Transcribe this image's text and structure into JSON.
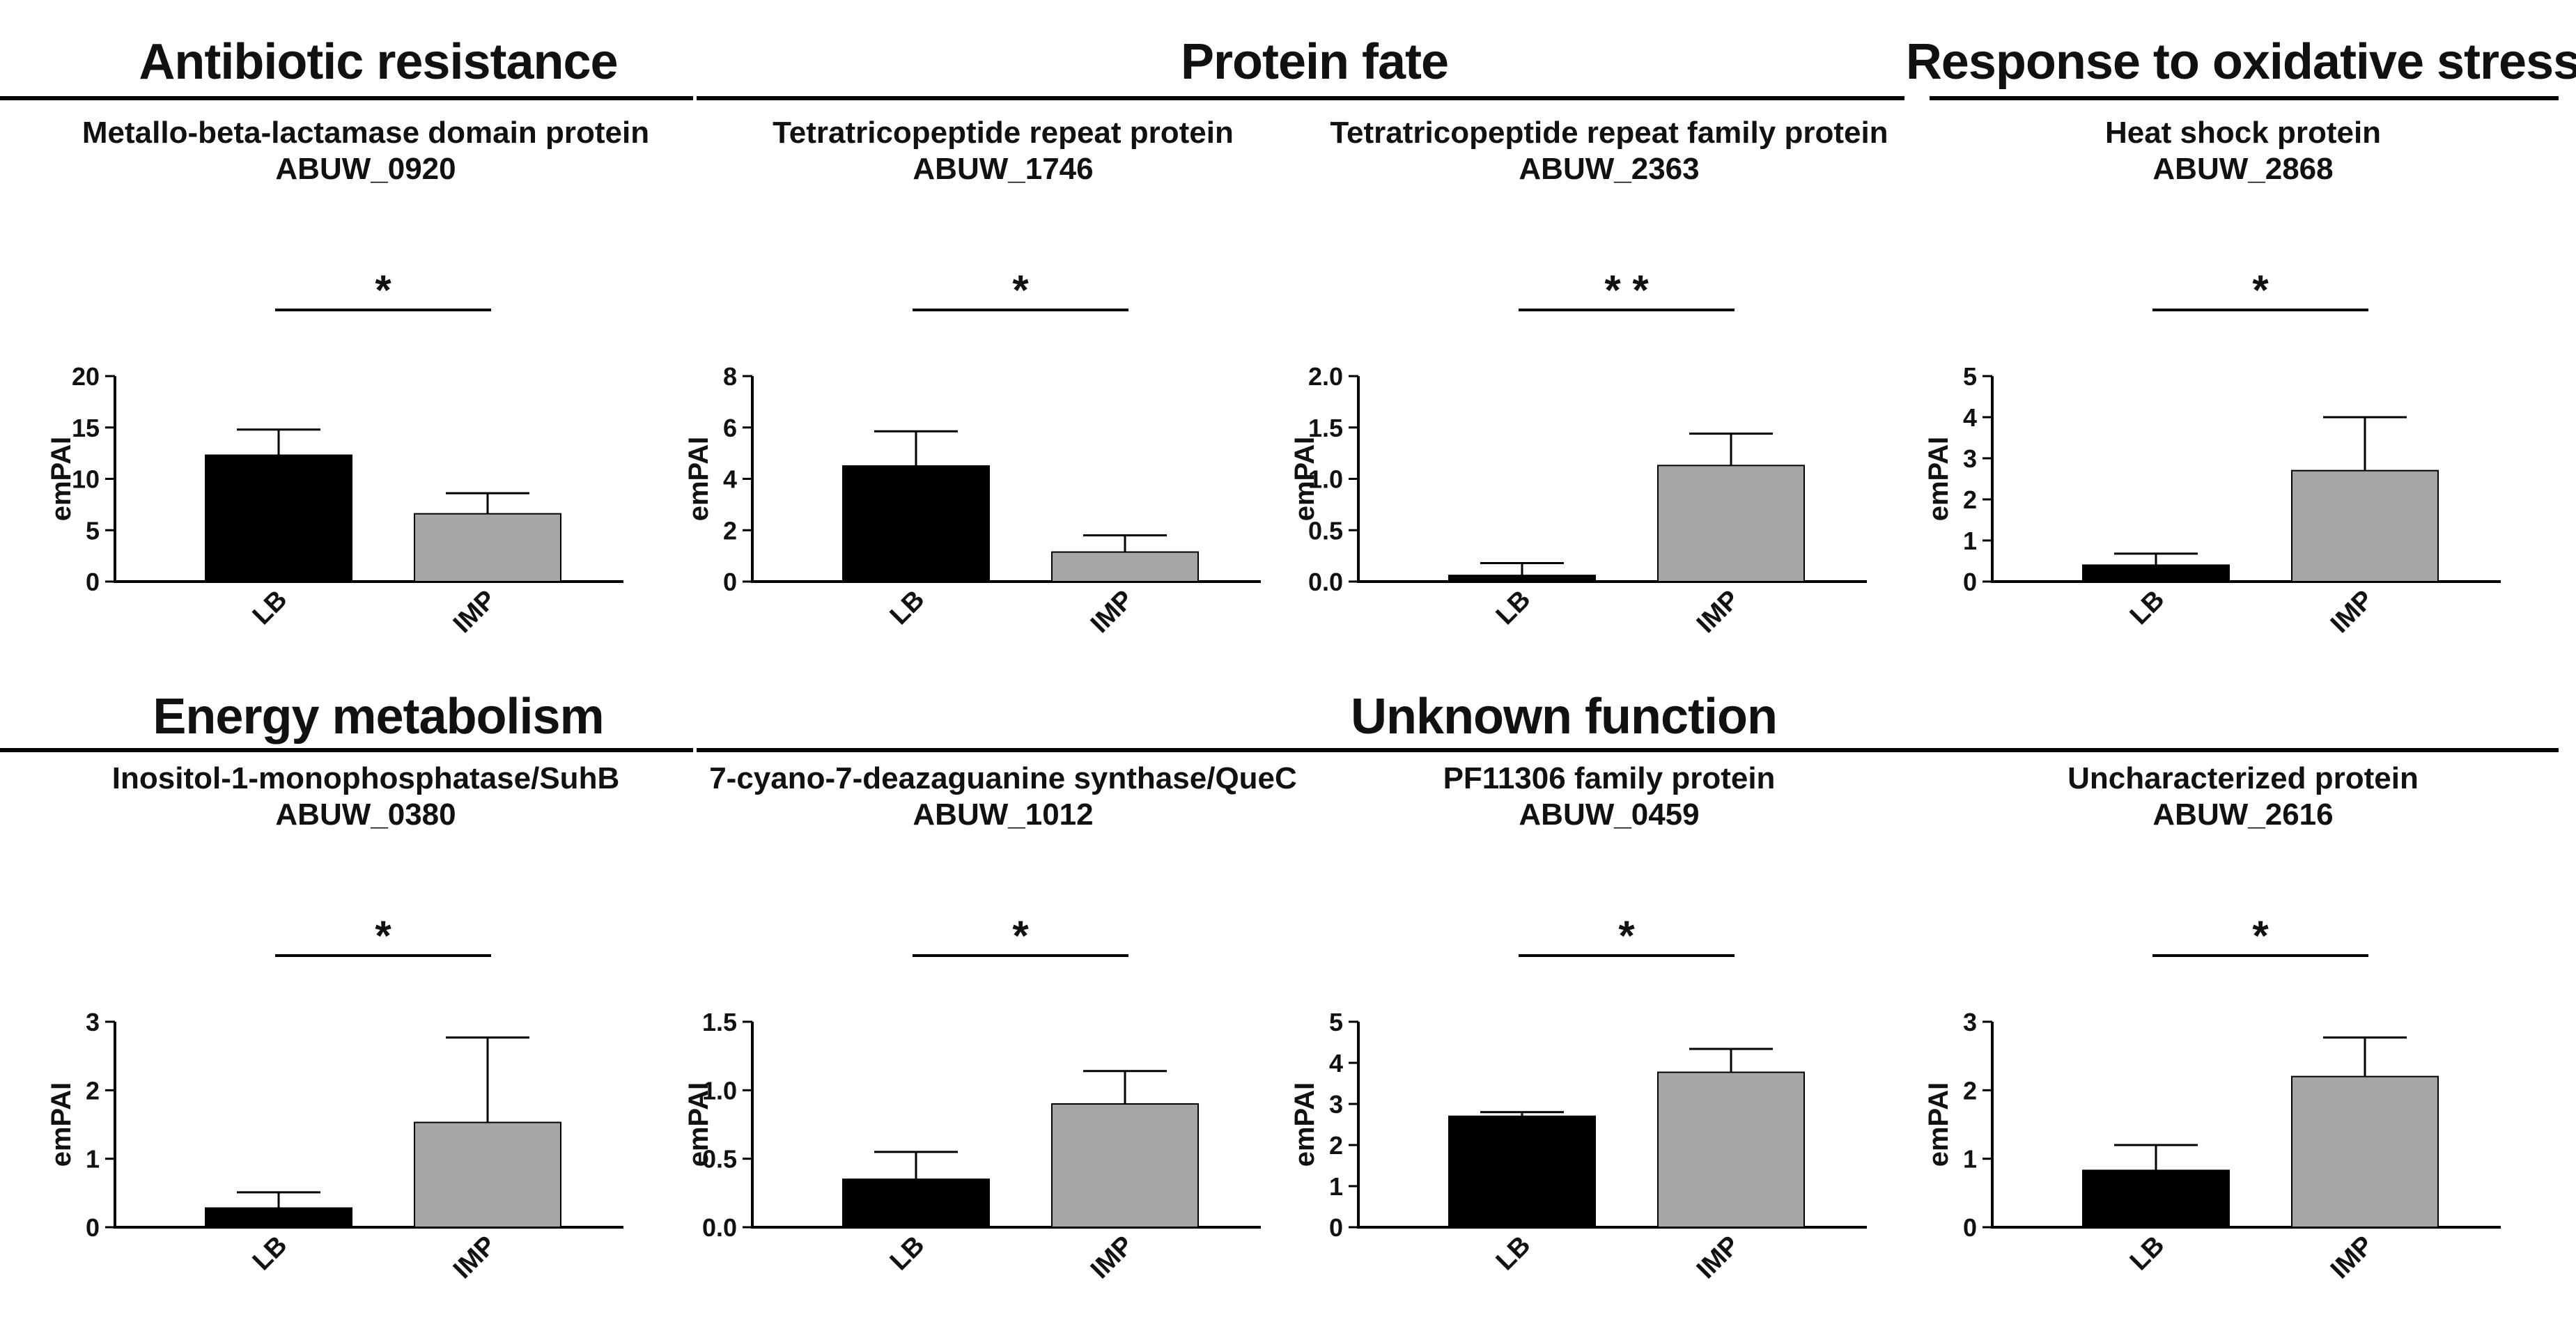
{
  "figure": {
    "groups": [
      {
        "id": "g1",
        "title": "Antibiotic resistance"
      },
      {
        "id": "g2",
        "title": "Protein fate"
      },
      {
        "id": "g3",
        "title": "Response to oxidative stress"
      },
      {
        "id": "g4",
        "title": "Energy metabolism"
      },
      {
        "id": "g5",
        "title": "Unknown function"
      }
    ]
  },
  "colors": {
    "LB": "#000000",
    "IMP": "#a6a6a6",
    "axis": "#000000",
    "text": "#111111"
  },
  "chart_data": [
    {
      "type": "bar",
      "group": "Antibiotic resistance",
      "title": "Metallo-beta-lactamase domain protein",
      "subtitle": "ABUW_0920",
      "ylabel": "emPAI",
      "categories": [
        "LB",
        "IMP"
      ],
      "values": [
        12.3,
        6.6
      ],
      "errors": [
        2.5,
        2.0
      ],
      "ylim": [
        0,
        20
      ],
      "yticks": [
        "0",
        "5",
        "10",
        "15",
        "20"
      ],
      "significance": "*"
    },
    {
      "type": "bar",
      "group": "Protein fate",
      "title": "Tetratricopeptide repeat protein",
      "subtitle": "ABUW_1746",
      "ylabel": "emPAI",
      "categories": [
        "LB",
        "IMP"
      ],
      "values": [
        4.5,
        1.15
      ],
      "errors": [
        1.35,
        0.65
      ],
      "ylim": [
        0,
        8
      ],
      "yticks": [
        "0",
        "2",
        "4",
        "6",
        "8"
      ],
      "significance": "*"
    },
    {
      "type": "bar",
      "group": "Protein fate",
      "title": "Tetratricopeptide repeat family protein",
      "subtitle": "ABUW_2363",
      "ylabel": "emPAI",
      "categories": [
        "LB",
        "IMP"
      ],
      "values": [
        0.06,
        1.13
      ],
      "errors": [
        0.12,
        0.31
      ],
      "ylim": [
        0,
        2
      ],
      "yticks": [
        "0.0",
        "0.5",
        "1.0",
        "1.5",
        "2.0"
      ],
      "significance": "* *"
    },
    {
      "type": "bar",
      "group": "Response to oxidative stress",
      "title": "Heat shock protein",
      "subtitle": "ABUW_2868",
      "ylabel": "emPAI",
      "categories": [
        "LB",
        "IMP"
      ],
      "values": [
        0.4,
        2.7
      ],
      "errors": [
        0.28,
        1.3
      ],
      "ylim": [
        0,
        5
      ],
      "yticks": [
        "0",
        "1",
        "2",
        "3",
        "4",
        "5"
      ],
      "significance": "*"
    },
    {
      "type": "bar",
      "group": "Energy metabolism",
      "title": "Inositol-1-monophosphatase/SuhB",
      "subtitle": "ABUW_0380",
      "ylabel": "emPAI",
      "categories": [
        "LB",
        "IMP"
      ],
      "values": [
        0.28,
        1.53
      ],
      "errors": [
        0.23,
        1.24
      ],
      "ylim": [
        0,
        3
      ],
      "yticks": [
        "0",
        "1",
        "2",
        "3"
      ],
      "significance": "*"
    },
    {
      "type": "bar",
      "group": "Unknown function",
      "title": "7-cyano-7-deazaguanine synthase/QueC",
      "subtitle": "ABUW_1012",
      "ylabel": "emPAI",
      "categories": [
        "LB",
        "IMP"
      ],
      "values": [
        0.35,
        0.9
      ],
      "errors": [
        0.2,
        0.24
      ],
      "ylim": [
        0,
        1.5
      ],
      "yticks": [
        "0.0",
        "0.5",
        "1.0",
        "1.5"
      ],
      "significance": "*"
    },
    {
      "type": "bar",
      "group": "Unknown function",
      "title": "PF11306 family protein",
      "subtitle": "ABUW_0459",
      "ylabel": "emPAI",
      "categories": [
        "LB",
        "IMP"
      ],
      "values": [
        2.7,
        3.77
      ],
      "errors": [
        0.1,
        0.57
      ],
      "ylim": [
        0,
        5
      ],
      "yticks": [
        "0",
        "1",
        "2",
        "3",
        "4",
        "5"
      ],
      "significance": "*"
    },
    {
      "type": "bar",
      "group": "Unknown function",
      "title": "Uncharacterized protein",
      "subtitle": "ABUW_2616",
      "ylabel": "emPAI",
      "categories": [
        "LB",
        "IMP"
      ],
      "values": [
        0.83,
        2.2
      ],
      "errors": [
        0.37,
        0.57
      ],
      "ylim": [
        0,
        3
      ],
      "yticks": [
        "0",
        "1",
        "2",
        "3"
      ],
      "significance": "*"
    }
  ]
}
